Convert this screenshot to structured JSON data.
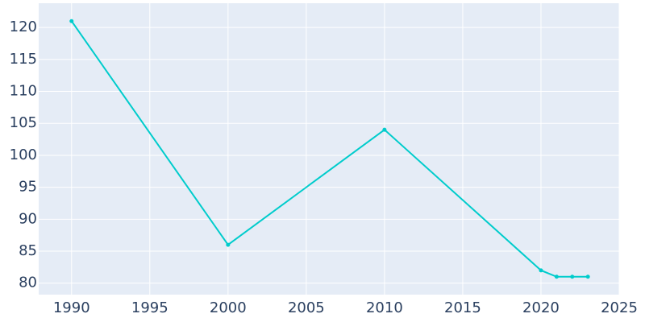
{
  "chart_data": {
    "type": "line",
    "x": [
      1990,
      2000,
      2010,
      2020,
      2021,
      2022,
      2023
    ],
    "series": [
      {
        "color": "#00cccc",
        "values": [
          121,
          86,
          104,
          82,
          81,
          81,
          81
        ]
      }
    ],
    "xlim": [
      1987.9,
      2025
    ],
    "xticks": [
      1990,
      1995,
      2000,
      2005,
      2010,
      2015,
      2020,
      2025
    ],
    "ylim": [
      78.2,
      123.8
    ],
    "yticks": [
      80,
      85,
      90,
      95,
      100,
      105,
      110,
      115,
      120
    ],
    "grid": true
  }
}
